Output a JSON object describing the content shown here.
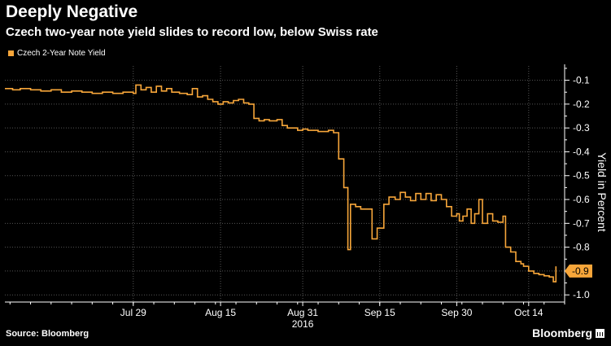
{
  "header": {
    "title": "Deeply Negative",
    "subtitle": "Czech two-year note yield slides to record low, below Swiss rate"
  },
  "legend": {
    "label": "Czech 2-Year Note Yield"
  },
  "footer": {
    "source": "Source: Bloomberg",
    "brand": "Bloomberg"
  },
  "colors": {
    "series": "#f7a63a",
    "background": "#000000",
    "axis": "#ffffff"
  },
  "chart_data": {
    "type": "line",
    "title": "Deeply Negative",
    "subtitle": "Czech two-year note yield slides to record low, below Swiss rate",
    "xlabel": "",
    "ylabel": "Yield in Percent",
    "x_tick_labels": [
      "Jul 29",
      "Aug 15",
      "Aug 31",
      "Sep 15",
      "Sep 30",
      "Oct 14"
    ],
    "x_year_label": "2016",
    "y_ticks": [
      -0.1,
      -0.2,
      -0.3,
      -0.4,
      -0.5,
      -0.6,
      -0.7,
      -0.8,
      -0.9,
      -1.0
    ],
    "y_tick_labels": [
      "-0.1",
      "-0.2",
      "-0.3",
      "-0.4",
      "-0.5",
      "-0.6",
      "-0.7",
      "-0.8",
      "-0.9",
      "-1.0"
    ],
    "ylim": [
      -1.03,
      -0.04
    ],
    "x_day_index_note": "days since Jul 29 2016 (Jul 29 = 0, Aug 15 = 17, Aug 31 = 33, Sep 15 = 48, Sep 30 = 63, Oct 14 = 77)",
    "xlim": [
      -25,
      84
    ],
    "series": [
      {
        "name": "Czech 2-Year Note Yield",
        "step": true,
        "last_value_label": "-0.9",
        "points": [
          {
            "x": -25,
            "y": -0.135
          },
          {
            "x": -23.5,
            "y": -0.14
          },
          {
            "x": -22,
            "y": -0.135
          },
          {
            "x": -20,
            "y": -0.14
          },
          {
            "x": -18,
            "y": -0.145
          },
          {
            "x": -16,
            "y": -0.14
          },
          {
            "x": -14,
            "y": -0.15
          },
          {
            "x": -12,
            "y": -0.145
          },
          {
            "x": -10,
            "y": -0.15
          },
          {
            "x": -8,
            "y": -0.155
          },
          {
            "x": -6,
            "y": -0.15
          },
          {
            "x": -4,
            "y": -0.155
          },
          {
            "x": -2,
            "y": -0.15
          },
          {
            "x": 0,
            "y": -0.155
          },
          {
            "x": 0.5,
            "y": -0.12
          },
          {
            "x": 1.5,
            "y": -0.14
          },
          {
            "x": 2.5,
            "y": -0.13
          },
          {
            "x": 3.5,
            "y": -0.15
          },
          {
            "x": 4.5,
            "y": -0.125
          },
          {
            "x": 5.5,
            "y": -0.145
          },
          {
            "x": 6.5,
            "y": -0.135
          },
          {
            "x": 7.5,
            "y": -0.15
          },
          {
            "x": 9,
            "y": -0.155
          },
          {
            "x": 10.5,
            "y": -0.16
          },
          {
            "x": 11.5,
            "y": -0.135
          },
          {
            "x": 12.5,
            "y": -0.17
          },
          {
            "x": 13.5,
            "y": -0.165
          },
          {
            "x": 14.5,
            "y": -0.18
          },
          {
            "x": 15.5,
            "y": -0.19
          },
          {
            "x": 16.5,
            "y": -0.2
          },
          {
            "x": 17.5,
            "y": -0.19
          },
          {
            "x": 18.5,
            "y": -0.195
          },
          {
            "x": 19.5,
            "y": -0.185
          },
          {
            "x": 20.5,
            "y": -0.18
          },
          {
            "x": 21.5,
            "y": -0.195
          },
          {
            "x": 22.5,
            "y": -0.2
          },
          {
            "x": 23.5,
            "y": -0.26
          },
          {
            "x": 24.5,
            "y": -0.27
          },
          {
            "x": 25.5,
            "y": -0.265
          },
          {
            "x": 26.5,
            "y": -0.27
          },
          {
            "x": 28,
            "y": -0.265
          },
          {
            "x": 29,
            "y": -0.29
          },
          {
            "x": 30,
            "y": -0.3
          },
          {
            "x": 31,
            "y": -0.3
          },
          {
            "x": 32,
            "y": -0.31
          },
          {
            "x": 33,
            "y": -0.305
          },
          {
            "x": 34,
            "y": -0.31
          },
          {
            "x": 35,
            "y": -0.31
          },
          {
            "x": 36,
            "y": -0.315
          },
          {
            "x": 37,
            "y": -0.315
          },
          {
            "x": 38,
            "y": -0.31
          },
          {
            "x": 39,
            "y": -0.32
          },
          {
            "x": 40,
            "y": -0.43
          },
          {
            "x": 41,
            "y": -0.55
          },
          {
            "x": 41.8,
            "y": -0.81
          },
          {
            "x": 42.3,
            "y": -0.62
          },
          {
            "x": 43.3,
            "y": -0.63
          },
          {
            "x": 44.3,
            "y": -0.64
          },
          {
            "x": 45.3,
            "y": -0.64
          },
          {
            "x": 46.5,
            "y": -0.765
          },
          {
            "x": 47.5,
            "y": -0.72
          },
          {
            "x": 48.8,
            "y": -0.62
          },
          {
            "x": 49.8,
            "y": -0.59
          },
          {
            "x": 51,
            "y": -0.6
          },
          {
            "x": 52,
            "y": -0.57
          },
          {
            "x": 53,
            "y": -0.59
          },
          {
            "x": 54,
            "y": -0.605
          },
          {
            "x": 55,
            "y": -0.575
          },
          {
            "x": 56,
            "y": -0.6
          },
          {
            "x": 57,
            "y": -0.575
          },
          {
            "x": 58,
            "y": -0.605
          },
          {
            "x": 59,
            "y": -0.58
          },
          {
            "x": 60,
            "y": -0.6
          },
          {
            "x": 61,
            "y": -0.63
          },
          {
            "x": 62,
            "y": -0.67
          },
          {
            "x": 63,
            "y": -0.66
          },
          {
            "x": 63.5,
            "y": -0.69
          },
          {
            "x": 64.2,
            "y": -0.67
          },
          {
            "x": 65,
            "y": -0.64
          },
          {
            "x": 65.8,
            "y": -0.7
          },
          {
            "x": 66.5,
            "y": -0.66
          },
          {
            "x": 67.3,
            "y": -0.6
          },
          {
            "x": 68,
            "y": -0.7
          },
          {
            "x": 69,
            "y": -0.66
          },
          {
            "x": 70,
            "y": -0.69
          },
          {
            "x": 71,
            "y": -0.695
          },
          {
            "x": 72,
            "y": -0.67
          },
          {
            "x": 72.5,
            "y": -0.8
          },
          {
            "x": 73.5,
            "y": -0.82
          },
          {
            "x": 74.5,
            "y": -0.86
          },
          {
            "x": 75.5,
            "y": -0.87
          },
          {
            "x": 76,
            "y": -0.88
          },
          {
            "x": 77,
            "y": -0.9
          },
          {
            "x": 78,
            "y": -0.91
          },
          {
            "x": 79,
            "y": -0.915
          },
          {
            "x": 80,
            "y": -0.92
          },
          {
            "x": 81,
            "y": -0.925
          },
          {
            "x": 81.8,
            "y": -0.945
          },
          {
            "x": 82.3,
            "y": -0.88
          }
        ]
      }
    ]
  }
}
